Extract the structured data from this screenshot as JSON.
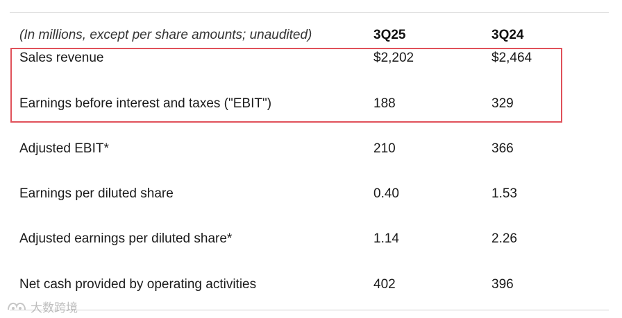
{
  "table": {
    "header": {
      "label": "(In millions, except per share amounts; unaudited)",
      "col1": "3Q25",
      "col2": "3Q24"
    },
    "rows": [
      {
        "label": "Sales revenue",
        "col1": "$2,202",
        "col2": "$2,464"
      },
      {
        "label": "Earnings before interest and taxes (\"EBIT\")",
        "col1": "188",
        "col2": "329"
      },
      {
        "label": "Adjusted EBIT*",
        "col1": "210",
        "col2": "366"
      },
      {
        "label": "Earnings per diluted share",
        "col1": "0.40",
        "col2": "1.53"
      },
      {
        "label": "Adjusted earnings per diluted share*",
        "col1": "1.14",
        "col2": "2.26"
      },
      {
        "label": "Net cash provided by operating activities",
        "col1": "402",
        "col2": "396"
      }
    ]
  },
  "highlight": {
    "color": "#e0515a"
  },
  "watermark": {
    "text": "大数跨境"
  }
}
